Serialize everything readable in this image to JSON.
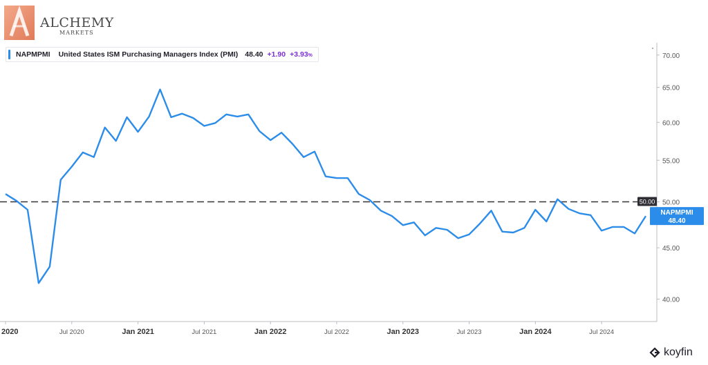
{
  "brand": {
    "name": "ALCHEMY",
    "sub": "MARKETS"
  },
  "legend": {
    "ticker": "NAPMPMI",
    "description": "United States ISM Purchasing Managers Index (PMI)",
    "value": "48.40",
    "change": "+1.90",
    "percent": "+3.93",
    "percent_unit": "%"
  },
  "reference_label": "50.00",
  "last_tag": {
    "ticker": "NAPMPMI",
    "value": "48.40"
  },
  "watermark": "koyfin",
  "colors": {
    "line": "#2b8cea",
    "change": "#7b2fd6",
    "reference": "#333333"
  },
  "chart_data": {
    "type": "line",
    "series": [
      {
        "name": "NAPMPMI",
        "x": [
          "2020-01",
          "2020-02",
          "2020-03",
          "2020-04",
          "2020-05",
          "2020-06",
          "2020-07",
          "2020-08",
          "2020-09",
          "2020-10",
          "2020-11",
          "2020-12",
          "2021-01",
          "2021-02",
          "2021-03",
          "2021-04",
          "2021-05",
          "2021-06",
          "2021-07",
          "2021-08",
          "2021-09",
          "2021-10",
          "2021-11",
          "2021-12",
          "2022-01",
          "2022-02",
          "2022-03",
          "2022-04",
          "2022-05",
          "2022-06",
          "2022-07",
          "2022-08",
          "2022-09",
          "2022-10",
          "2022-11",
          "2022-12",
          "2023-01",
          "2023-02",
          "2023-03",
          "2023-04",
          "2023-05",
          "2023-06",
          "2023-07",
          "2023-08",
          "2023-09",
          "2023-10",
          "2023-11",
          "2023-12",
          "2024-01",
          "2024-02",
          "2024-03",
          "2024-04",
          "2024-05",
          "2024-06",
          "2024-07",
          "2024-08",
          "2024-09",
          "2024-10",
          "2024-11"
        ],
        "values": [
          50.9,
          50.1,
          49.1,
          41.5,
          43.1,
          52.6,
          54.2,
          56.0,
          55.4,
          59.3,
          57.5,
          60.7,
          58.7,
          60.8,
          64.7,
          60.7,
          61.2,
          60.6,
          59.5,
          59.9,
          61.1,
          60.8,
          61.1,
          58.8,
          57.6,
          58.6,
          57.1,
          55.4,
          56.1,
          53.0,
          52.8,
          52.8,
          50.9,
          50.2,
          49.0,
          48.4,
          47.4,
          47.7,
          46.3,
          47.1,
          46.9,
          46.0,
          46.4,
          47.6,
          49.0,
          46.7,
          46.6,
          47.1,
          49.1,
          47.8,
          50.3,
          49.2,
          48.7,
          48.5,
          46.8,
          47.2,
          47.2,
          46.5,
          48.4
        ]
      }
    ],
    "reference_line": 50.0,
    "y_ticks": [
      "40.00",
      "45.00",
      "50.00",
      "55.00",
      "60.00",
      "65.00",
      "70.00"
    ],
    "x_ticks": [
      "2020",
      "Jul 2020",
      "Jan 2021",
      "Jul 2021",
      "Jan 2022",
      "Jul 2022",
      "Jan 2023",
      "Jul 2023",
      "Jan 2024",
      "Jul 2024"
    ],
    "x_tick_dates": [
      "2020-01",
      "2020-07",
      "2021-01",
      "2021-07",
      "2022-01",
      "2022-07",
      "2023-01",
      "2023-07",
      "2024-01",
      "2024-07"
    ],
    "ylim": [
      38,
      72
    ],
    "y_scale": "log",
    "grid": false,
    "legend_position": "top-left"
  }
}
